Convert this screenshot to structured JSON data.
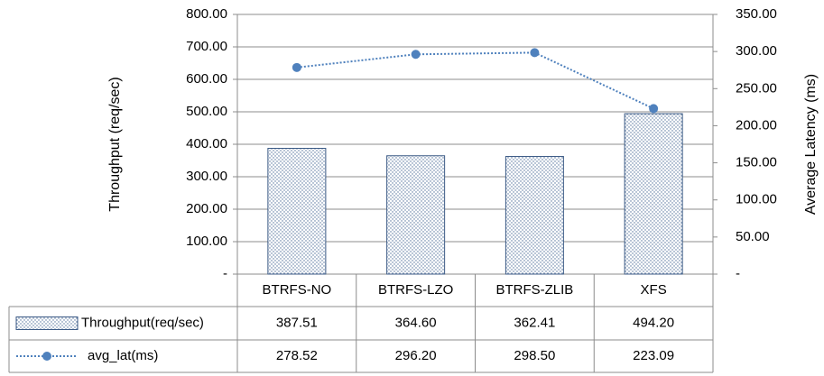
{
  "chart_data": {
    "type": "bar",
    "categories": [
      "BTRFS-NO",
      "BTRFS-LZO",
      "BTRFS-ZLIB",
      "XFS"
    ],
    "series": [
      {
        "name": "Throughput(req/sec)",
        "type": "bar",
        "color": "#4f81bd",
        "values": [
          387.51,
          364.6,
          362.41,
          494.2
        ],
        "value_labels": [
          "387.51",
          "364.60",
          "362.41",
          "494.20"
        ]
      },
      {
        "name": "avg_lat(ms)",
        "type": "line",
        "axis": "y2",
        "color": "#4f81bd",
        "values": [
          278.52,
          296.2,
          298.5,
          223.09
        ],
        "value_labels": [
          "278.52",
          "296.20",
          "298.50",
          "223.09"
        ]
      }
    ],
    "ylabel": "Throughput (req/sec)",
    "y2label": "Average Latency (ms)",
    "ylim": [
      0,
      800
    ],
    "yticks": [
      {
        "value": 0,
        "label": "-"
      },
      {
        "value": 100,
        "label": "100.00"
      },
      {
        "value": 200,
        "label": "200.00"
      },
      {
        "value": 300,
        "label": "300.00"
      },
      {
        "value": 400,
        "label": "400.00"
      },
      {
        "value": 500,
        "label": "500.00"
      },
      {
        "value": 600,
        "label": "600.00"
      },
      {
        "value": 700,
        "label": "700.00"
      },
      {
        "value": 800,
        "label": "800.00"
      }
    ],
    "y2lim": [
      0,
      350
    ],
    "y2ticks": [
      {
        "value": 0,
        "label": "-"
      },
      {
        "value": 50,
        "label": "50.00"
      },
      {
        "value": 100,
        "label": "100.00"
      },
      {
        "value": 150,
        "label": "150.00"
      },
      {
        "value": 200,
        "label": "200.00"
      },
      {
        "value": 250,
        "label": "250.00"
      },
      {
        "value": 300,
        "label": "300.00"
      },
      {
        "value": 350,
        "label": "350.00"
      }
    ],
    "grid": true
  }
}
